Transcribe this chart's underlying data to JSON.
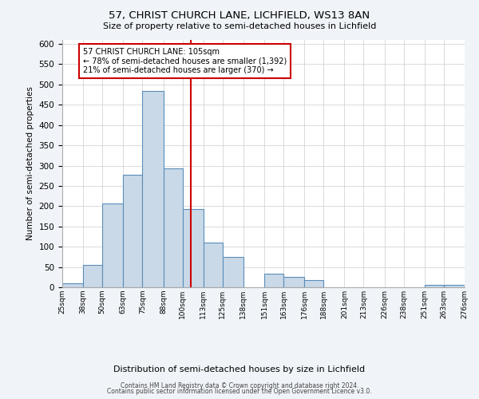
{
  "title1": "57, CHRIST CHURCH LANE, LICHFIELD, WS13 8AN",
  "title2": "Size of property relative to semi-detached houses in Lichfield",
  "xlabel": "Distribution of semi-detached houses by size in Lichfield",
  "ylabel": "Number of semi-detached properties",
  "bin_edges": [
    25,
    38,
    50,
    63,
    75,
    88,
    100,
    113,
    125,
    138,
    151,
    163,
    176,
    188,
    201,
    213,
    226,
    238,
    251,
    263,
    276
  ],
  "bar_heights": [
    9,
    56,
    207,
    278,
    484,
    293,
    193,
    110,
    75,
    0,
    33,
    26,
    18,
    0,
    0,
    0,
    0,
    0,
    5,
    6
  ],
  "bar_color": "#c9d9e8",
  "bar_edge_color": "#5b8db8",
  "vline_x": 105,
  "vline_color": "#cc0000",
  "annotation_title": "57 CHRIST CHURCH LANE: 105sqm",
  "annotation_line1": "← 78% of semi-detached houses are smaller (1,392)",
  "annotation_line2": "21% of semi-detached houses are larger (370) →",
  "annotation_box_color": "#cc0000",
  "ylim": [
    0,
    610
  ],
  "yticks": [
    0,
    50,
    100,
    150,
    200,
    250,
    300,
    350,
    400,
    450,
    500,
    550,
    600
  ],
  "tick_labels": [
    "25sqm",
    "38sqm",
    "50sqm",
    "63sqm",
    "75sqm",
    "88sqm",
    "100sqm",
    "113sqm",
    "125sqm",
    "138sqm",
    "151sqm",
    "163sqm",
    "176sqm",
    "188sqm",
    "201sqm",
    "213sqm",
    "226sqm",
    "238sqm",
    "251sqm",
    "263sqm",
    "276sqm"
  ],
  "footer1": "Contains HM Land Registry data © Crown copyright and database right 2024.",
  "footer2": "Contains public sector information licensed under the Open Government Licence v3.0.",
  "bg_color": "#f0f4f8",
  "plot_bg_color": "#ffffff"
}
